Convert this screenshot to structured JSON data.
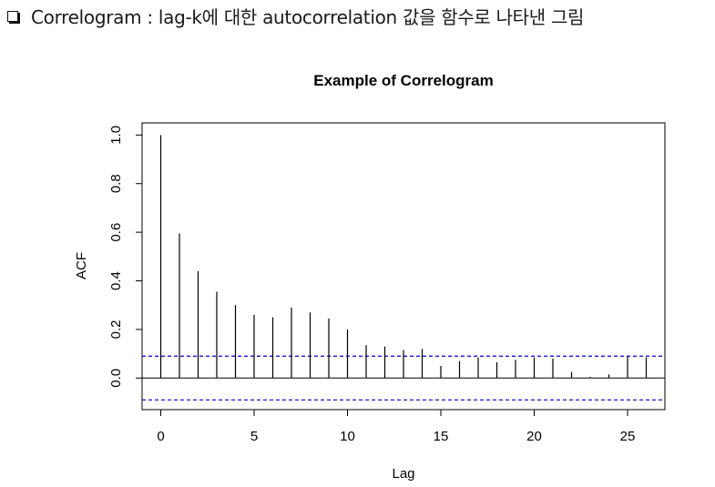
{
  "header": {
    "bullet_icon": "hollow-square-bullet-icon",
    "text": "Correlogram : lag-k에 대한 autocorrelation 값을 함수로 나타낸 그림"
  },
  "chart_data": {
    "type": "bar",
    "title": "Example of Correlogram",
    "xlabel": "Lag",
    "ylabel": "ACF",
    "xlim": [
      -1.0,
      27.0
    ],
    "ylim": [
      -0.13,
      1.05
    ],
    "x_ticks": [
      0,
      5,
      10,
      15,
      20,
      25
    ],
    "x_tick_labels": [
      "0",
      "5",
      "10",
      "15",
      "20",
      "25"
    ],
    "y_ticks": [
      0.0,
      0.2,
      0.4,
      0.6,
      0.8,
      1.0
    ],
    "y_tick_labels": [
      "0.0",
      "0.2",
      "0.4",
      "0.6",
      "0.8",
      "1.0"
    ],
    "lags": [
      0,
      1,
      2,
      3,
      4,
      5,
      6,
      7,
      8,
      9,
      10,
      11,
      12,
      13,
      14,
      15,
      16,
      17,
      18,
      19,
      20,
      21,
      22,
      23,
      24,
      25,
      26
    ],
    "acf": [
      1.0,
      0.595,
      0.44,
      0.355,
      0.3,
      0.26,
      0.25,
      0.29,
      0.27,
      0.245,
      0.2,
      0.135,
      0.13,
      0.115,
      0.12,
      0.05,
      0.07,
      0.085,
      0.065,
      0.075,
      0.085,
      0.08,
      0.025,
      0.005,
      0.015,
      0.09,
      0.085
    ],
    "confidence_bounds": [
      0.09,
      -0.09
    ],
    "bound_color": "#0000cc",
    "line_color": "#000000",
    "grid": false
  }
}
